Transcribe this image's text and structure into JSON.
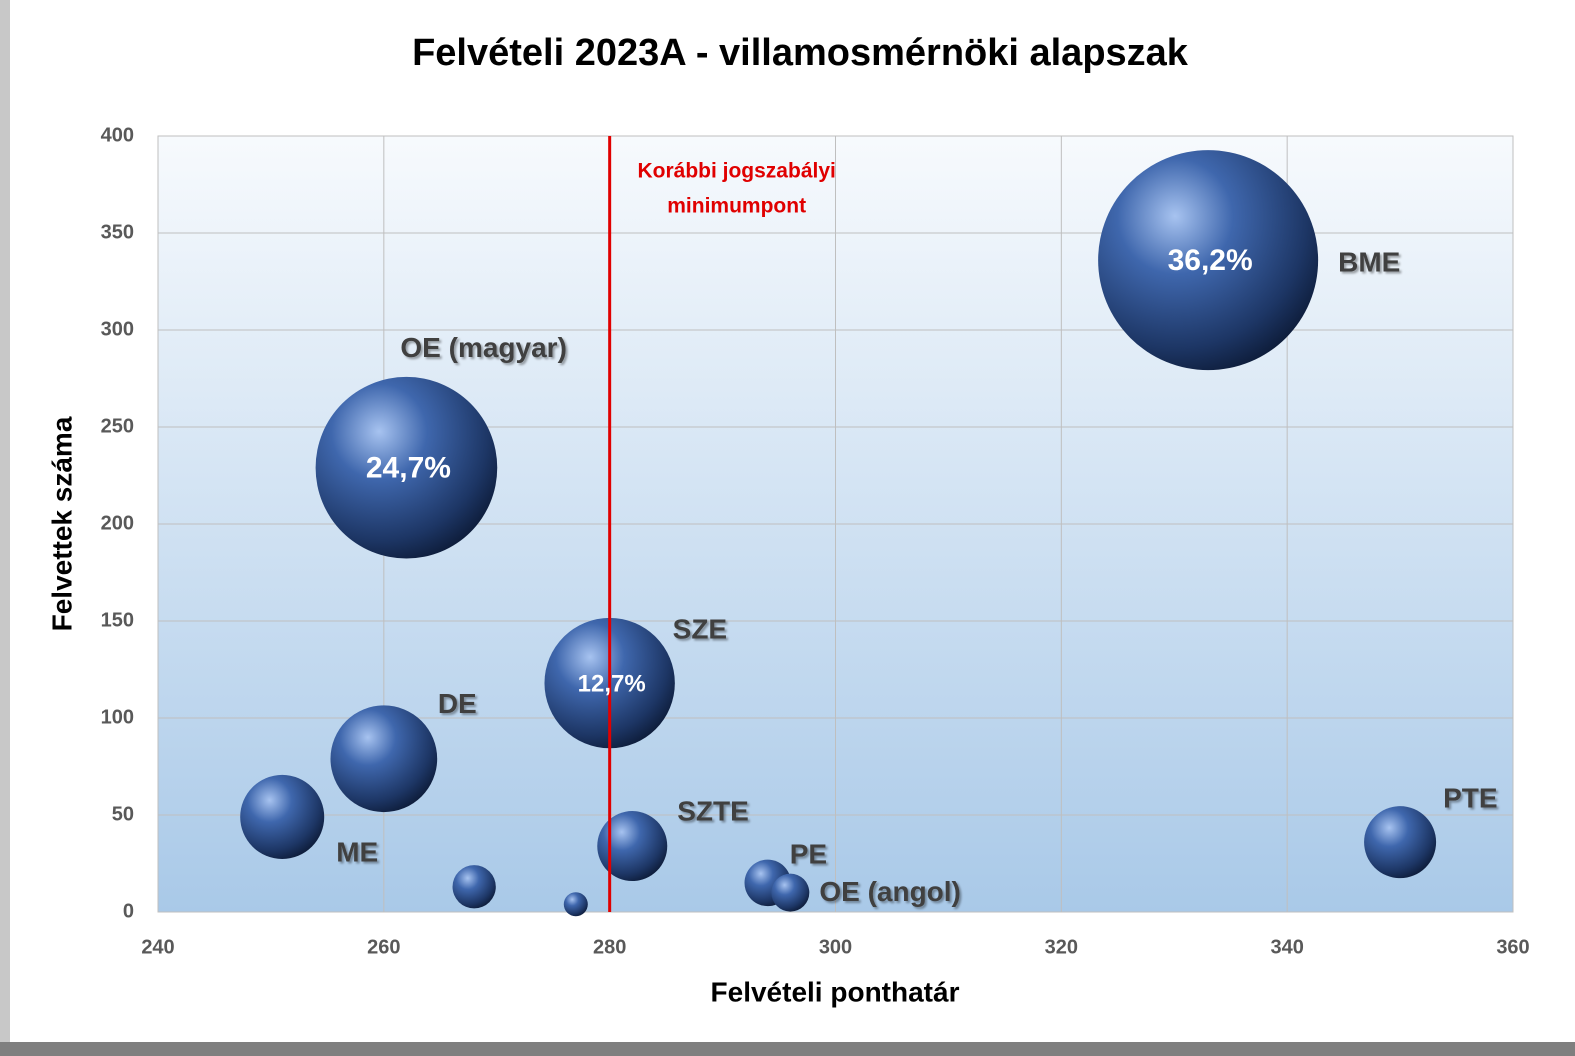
{
  "chart_data": {
    "type": "bubble",
    "title": "Felvételi 2023A - villamosmérnöki alapszak",
    "x_label": "Felvételi ponthatár",
    "y_label": "Felvettek száma",
    "xlim": [
      240,
      360
    ],
    "xticks": [
      240,
      260,
      280,
      300,
      320,
      340,
      360
    ],
    "ylim": [
      0,
      400
    ],
    "yticks": [
      0,
      50,
      100,
      150,
      200,
      250,
      300,
      350,
      400
    ],
    "grid": true,
    "color": "#2f4f8f",
    "x": [
      333,
      262,
      280,
      260,
      251,
      268,
      277,
      282,
      294,
      296,
      350
    ],
    "values": [
      336,
      229,
      118,
      79,
      49,
      13,
      4,
      34,
      15,
      10,
      36
    ],
    "sizes": [
      336,
      229,
      118,
      79,
      49,
      13,
      4,
      34,
      15,
      10,
      36
    ],
    "labels": [
      "BME",
      "OE (magyar)",
      "SZE",
      "DE",
      "ME",
      null,
      null,
      "SZTE",
      "PE",
      "OE (angol)",
      "PTE"
    ],
    "inner_labels": [
      "36,2%",
      "24,7%",
      "12,7%",
      null,
      null,
      null,
      null,
      null,
      null,
      null,
      null
    ],
    "reference_line": {
      "x": 280,
      "color": "#e00000",
      "label_lines": [
        "Korábbi jogszabályi",
        "minimumpont"
      ]
    }
  }
}
